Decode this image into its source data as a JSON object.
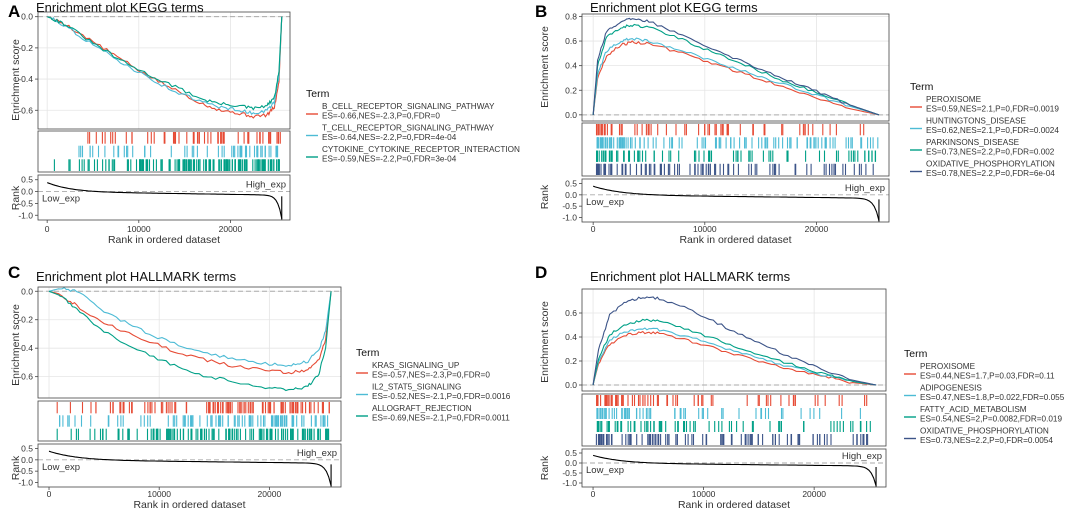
{
  "figure": {
    "colors": {
      "red": "#E64B35",
      "cyan": "#4DBBD5",
      "teal": "#00A087",
      "navy": "#3C5488",
      "grid": "#E5E5E5",
      "frame": "#444444",
      "dash": "#AAAAAA"
    }
  },
  "chart_data": [
    {
      "type": "line",
      "panel_letter": "A",
      "title": "Enrichment plot KEGG terms",
      "ylabel": "Enrichment score",
      "rank_ylabel": "Rank",
      "xlabel": "Rank in ordered dataset",
      "low_label": "Low_exp",
      "high_label": "High_exp",
      "legend_title": "Term",
      "ylim": [
        -0.72,
        0.03
      ],
      "yticks": [
        0.0,
        -0.2,
        -0.4,
        -0.6
      ],
      "ytick_labels": [
        "0.0",
        "-0.2",
        "-0.4",
        "-0.6"
      ],
      "rank_ylim": [
        -1.2,
        0.7
      ],
      "rank_yticks": [
        0.5,
        0.0,
        -0.5,
        -1.0
      ],
      "rank_ytick_labels": [
        "0.5",
        "0.0",
        "-0.5",
        "-1.0"
      ],
      "xlim": [
        -1000,
        26500
      ],
      "xticks": [
        0,
        10000,
        20000
      ],
      "xtick_labels": [
        "0",
        "10000",
        "20000"
      ],
      "series": [
        {
          "name": "B_CELL_RECEPTOR_SIGNALING_PATHWAY",
          "stats": "ES=-0.66,NES=-2.3,P=0,FDR=0",
          "color": "red",
          "x": [
            0,
            500,
            2000,
            5000,
            8000,
            11000,
            14000,
            17000,
            19000,
            21000,
            22500,
            24000,
            24800,
            25300,
            25600
          ],
          "y": [
            0,
            -0.01,
            -0.05,
            -0.16,
            -0.27,
            -0.38,
            -0.47,
            -0.56,
            -0.6,
            -0.62,
            -0.64,
            -0.63,
            -0.58,
            -0.42,
            0
          ]
        },
        {
          "name": "T_CELL_RECEPTOR_SIGNALING_PATHWAY",
          "stats": "ES=-0.64,NES=-2.2,P=0,FDR=4e-04",
          "color": "cyan",
          "x": [
            0,
            500,
            2000,
            5000,
            8000,
            11000,
            14000,
            17000,
            19000,
            21000,
            22500,
            24000,
            24800,
            25300,
            25600
          ],
          "y": [
            0,
            -0.01,
            -0.06,
            -0.18,
            -0.29,
            -0.39,
            -0.48,
            -0.55,
            -0.58,
            -0.6,
            -0.62,
            -0.6,
            -0.55,
            -0.38,
            0
          ]
        },
        {
          "name": "CYTOKINE_CYTOKINE_RECEPTOR_INTERACTION",
          "stats": "ES=-0.59,NES=-2.2,P=0,FDR=3e-04",
          "color": "teal",
          "x": [
            0,
            500,
            2000,
            5000,
            8000,
            11000,
            14000,
            17000,
            19000,
            21000,
            22500,
            24000,
            24800,
            25300,
            25600
          ],
          "y": [
            0,
            -0.01,
            -0.05,
            -0.17,
            -0.28,
            -0.37,
            -0.45,
            -0.53,
            -0.56,
            -0.57,
            -0.59,
            -0.57,
            -0.52,
            -0.35,
            0
          ]
        }
      ],
      "hits": [
        {
          "color": "red",
          "count": 55,
          "bias": "high"
        },
        {
          "color": "cyan",
          "count": 55,
          "bias": "high"
        },
        {
          "color": "teal",
          "count": 130,
          "bias": "high"
        }
      ]
    },
    {
      "type": "line",
      "panel_letter": "B",
      "title": "Enrichment plot KEGG terms",
      "ylabel": "Enrichment score",
      "rank_ylabel": "Rank",
      "xlabel": "Rank in ordered dataset",
      "low_label": "Low_exp",
      "high_label": "High_exp",
      "legend_title": "Term",
      "ylim": [
        -0.05,
        0.82
      ],
      "yticks": [
        0.0,
        0.2,
        0.4,
        0.6,
        0.8
      ],
      "ytick_labels": [
        "0.0",
        "0.2",
        "0.4",
        "0.6",
        "0.8"
      ],
      "rank_ylim": [
        -1.2,
        0.7
      ],
      "rank_yticks": [
        0.5,
        0.0,
        -0.5,
        -1.0
      ],
      "rank_ytick_labels": [
        "0.5",
        "0.0",
        "-0.5",
        "-1.0"
      ],
      "xlim": [
        -1000,
        26500
      ],
      "xticks": [
        0,
        10000,
        20000
      ],
      "xtick_labels": [
        "0",
        "10000",
        "20000"
      ],
      "series": [
        {
          "name": "PEROXISOME",
          "stats": "ES=0.59,NES=2.1,P=0,FDR=0.0019",
          "color": "red",
          "x": [
            0,
            400,
            1200,
            2500,
            3500,
            5000,
            8000,
            11000,
            14000,
            17000,
            20000,
            23000,
            25600
          ],
          "y": [
            0,
            0.3,
            0.48,
            0.57,
            0.59,
            0.58,
            0.5,
            0.41,
            0.32,
            0.23,
            0.14,
            0.05,
            0
          ]
        },
        {
          "name": "HUNTINGTONS_DISEASE",
          "stats": "ES=0.62,NES=2.1,P=0,FDR=0.0024",
          "color": "cyan",
          "x": [
            0,
            400,
            1200,
            2500,
            3500,
            5000,
            8000,
            11000,
            14000,
            17000,
            20000,
            23000,
            25600
          ],
          "y": [
            0,
            0.33,
            0.52,
            0.6,
            0.62,
            0.6,
            0.52,
            0.43,
            0.34,
            0.25,
            0.16,
            0.07,
            0
          ]
        },
        {
          "name": "PARKINSONS_DISEASE",
          "stats": "ES=0.73,NES=2.2,P=0,FDR=0.002",
          "color": "teal",
          "x": [
            0,
            400,
            1200,
            2500,
            3500,
            5000,
            8000,
            11000,
            14000,
            17000,
            20000,
            23000,
            25600
          ],
          "y": [
            0,
            0.4,
            0.63,
            0.71,
            0.73,
            0.71,
            0.61,
            0.5,
            0.39,
            0.28,
            0.18,
            0.08,
            0
          ]
        },
        {
          "name": "OXIDATIVE_PHOSPHORYLATION",
          "stats": "ES=0.78,NES=2.2,P=0,FDR=6e-04",
          "color": "navy",
          "x": [
            0,
            400,
            1200,
            2500,
            3500,
            5000,
            8000,
            11000,
            14000,
            17000,
            20000,
            23000,
            25600
          ],
          "y": [
            0,
            0.45,
            0.68,
            0.76,
            0.78,
            0.76,
            0.65,
            0.53,
            0.41,
            0.3,
            0.19,
            0.08,
            0
          ]
        }
      ],
      "hits": [
        {
          "color": "red",
          "count": 60,
          "bias": "low"
        },
        {
          "color": "cyan",
          "count": 110,
          "bias": "low"
        },
        {
          "color": "teal",
          "count": 80,
          "bias": "low"
        },
        {
          "color": "navy",
          "count": 90,
          "bias": "low"
        }
      ]
    },
    {
      "type": "line",
      "panel_letter": "C",
      "title": "Enrichment plot HALLMARK terms",
      "ylabel": "Enrichment score",
      "rank_ylabel": "Rank",
      "xlabel": "Rank in ordered dataset",
      "low_label": "Low_exp",
      "high_label": "High_exp",
      "legend_title": "Term",
      "ylim": [
        -0.75,
        0.03
      ],
      "yticks": [
        0.0,
        -0.2,
        -0.4,
        -0.6
      ],
      "ytick_labels": [
        "0.0",
        "-0.2",
        "-0.4",
        "-0.6"
      ],
      "rank_ylim": [
        -1.2,
        0.7
      ],
      "rank_yticks": [
        0.5,
        0.0,
        -0.5,
        -1.0
      ],
      "rank_ytick_labels": [
        "0.5",
        "0.0",
        "-0.5",
        "-1.0"
      ],
      "xlim": [
        -1000,
        26500
      ],
      "xticks": [
        0,
        10000,
        20000
      ],
      "xtick_labels": [
        "0",
        "10000",
        "20000"
      ],
      "series": [
        {
          "name": "KRAS_SIGNALING_UP",
          "stats": "ES=-0.57,NES=-2.3,P=0,FDR=0",
          "color": "red",
          "x": [
            0,
            1000,
            2500,
            5000,
            8000,
            11000,
            14000,
            17000,
            20000,
            22000,
            23500,
            24500,
            25100,
            25600
          ],
          "y": [
            0,
            -0.02,
            -0.1,
            -0.22,
            -0.32,
            -0.41,
            -0.48,
            -0.53,
            -0.56,
            -0.57,
            -0.55,
            -0.48,
            -0.34,
            0
          ]
        },
        {
          "name": "IL2_STAT5_SIGNALING",
          "stats": "ES=-0.52,NES=-2.1,P=0,FDR=0.0016",
          "color": "cyan",
          "x": [
            0,
            1000,
            2500,
            5000,
            8000,
            11000,
            14000,
            17000,
            20000,
            22000,
            23500,
            24500,
            25100,
            25600
          ],
          "y": [
            0,
            0.02,
            0.0,
            -0.14,
            -0.26,
            -0.36,
            -0.43,
            -0.48,
            -0.51,
            -0.52,
            -0.49,
            -0.41,
            -0.28,
            0
          ]
        },
        {
          "name": "ALLOGRAFT_REJECTION",
          "stats": "ES=-0.69,NES=-2.1,P=0,FDR=0.0011",
          "color": "teal",
          "x": [
            0,
            1000,
            2500,
            5000,
            8000,
            11000,
            14000,
            17000,
            20000,
            22000,
            23500,
            24500,
            25100,
            25600
          ],
          "y": [
            0,
            -0.03,
            -0.13,
            -0.28,
            -0.41,
            -0.51,
            -0.59,
            -0.64,
            -0.68,
            -0.69,
            -0.67,
            -0.58,
            -0.4,
            0
          ]
        }
      ],
      "hits": [
        {
          "color": "red",
          "count": 110,
          "bias": "high"
        },
        {
          "color": "cyan",
          "count": 90,
          "bias": "high"
        },
        {
          "color": "teal",
          "count": 130,
          "bias": "high"
        }
      ]
    },
    {
      "type": "line",
      "panel_letter": "D",
      "title": "Enrichment plot HALLMARK terms",
      "ylabel": "Enrichment score",
      "rank_ylabel": "Rank",
      "xlabel": "Rank in ordered dataset",
      "low_label": "Low_exp",
      "high_label": "High_exp",
      "legend_title": "Term",
      "ylim": [
        -0.05,
        0.8
      ],
      "yticks": [
        0.0,
        0.2,
        0.4,
        0.6
      ],
      "ytick_labels": [
        "0.0",
        "0.2",
        "0.4",
        "0.6"
      ],
      "rank_ylim": [
        -1.2,
        0.7
      ],
      "rank_yticks": [
        0.5,
        0.0,
        -0.5,
        -1.0
      ],
      "rank_ytick_labels": [
        "0.5",
        "0.0",
        "-0.5",
        "-1.0"
      ],
      "xlim": [
        -1000,
        26500
      ],
      "xticks": [
        0,
        10000,
        20000
      ],
      "xtick_labels": [
        "0",
        "10000",
        "20000"
      ],
      "series": [
        {
          "name": "PEROXISOME",
          "stats": "ES=0.44,NES=1.7,P=0.03,FDR=0.11",
          "color": "red",
          "x": [
            0,
            500,
            1500,
            3000,
            4500,
            6000,
            9000,
            12000,
            15000,
            18000,
            21000,
            23500,
            25600
          ],
          "y": [
            0,
            0.18,
            0.34,
            0.42,
            0.44,
            0.43,
            0.36,
            0.28,
            0.2,
            0.13,
            0.07,
            0.02,
            0
          ]
        },
        {
          "name": "ADIPOGENESIS",
          "stats": "ES=0.47,NES=1.8,P=0.022,FDR=0.055",
          "color": "cyan",
          "x": [
            0,
            500,
            1500,
            3000,
            4500,
            6000,
            9000,
            12000,
            15000,
            18000,
            21000,
            23500,
            25600
          ],
          "y": [
            0,
            0.2,
            0.37,
            0.45,
            0.47,
            0.46,
            0.39,
            0.3,
            0.22,
            0.15,
            0.08,
            0.03,
            0
          ]
        },
        {
          "name": "FATTY_ACID_METABOLISM",
          "stats": "ES=0.54,NES=2,P=0.0082,FDR=0.019",
          "color": "teal",
          "x": [
            0,
            500,
            1500,
            3000,
            4500,
            6000,
            9000,
            12000,
            15000,
            18000,
            21000,
            23500,
            25600
          ],
          "y": [
            0,
            0.22,
            0.42,
            0.51,
            0.54,
            0.53,
            0.45,
            0.35,
            0.26,
            0.17,
            0.09,
            0.03,
            0
          ]
        },
        {
          "name": "OXIDATIVE_PHOSPHORYLATION",
          "stats": "ES=0.73,NES=2.2,P=0,FDR=0.0054",
          "color": "navy",
          "x": [
            0,
            500,
            1500,
            3000,
            4500,
            6000,
            9000,
            12000,
            15000,
            18000,
            21000,
            23500,
            25600
          ],
          "y": [
            0,
            0.3,
            0.58,
            0.7,
            0.73,
            0.72,
            0.62,
            0.48,
            0.35,
            0.23,
            0.12,
            0.04,
            0
          ]
        }
      ],
      "hits": [
        {
          "color": "red",
          "count": 70,
          "bias": "low"
        },
        {
          "color": "cyan",
          "count": 60,
          "bias": "low"
        },
        {
          "color": "teal",
          "count": 70,
          "bias": "low"
        },
        {
          "color": "navy",
          "count": 100,
          "bias": "low"
        }
      ]
    }
  ]
}
